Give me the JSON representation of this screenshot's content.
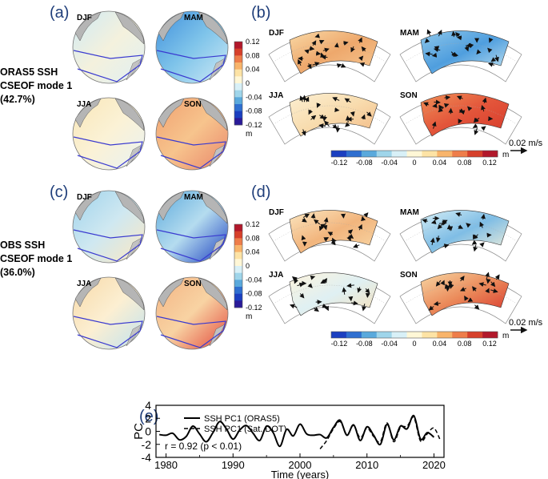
{
  "figure": {
    "panel_a": {
      "label": "(a)",
      "side_label": [
        "ORAS5 SSH",
        "CSEOF mode 1",
        "(42.7%)"
      ]
    },
    "panel_b": {
      "label": "(b)"
    },
    "panel_c": {
      "label": "(c)",
      "side_label": [
        "OBS SSH",
        "CSEOF mode 1",
        "(36.0%)"
      ]
    },
    "panel_d": {
      "label": "(d)"
    },
    "panel_e": {
      "label": "(e)"
    },
    "seasons": [
      "DJF",
      "MAM",
      "JJA",
      "SON"
    ],
    "colorbar_vertical": {
      "ticks": [
        "0.12",
        "0.08",
        "0.04",
        "0",
        "-0.04",
        "-0.08",
        "-0.12"
      ],
      "unit": "m",
      "colors": [
        "#b2182b",
        "#d6402b",
        "#ee7d4a",
        "#f8b46b",
        "#fde3a5",
        "#fff7d6",
        "#d8f0f7",
        "#9fd5ea",
        "#5aa9dc",
        "#2f6fd0",
        "#1b3fc0",
        "#2a1a99"
      ]
    },
    "colorbar_horizontal": {
      "ticks": [
        "-0.12",
        "-0.08",
        "-0.04",
        "0",
        "0.04",
        "0.08",
        "0.12"
      ],
      "unit": "m",
      "colors": [
        "#1b3fc0",
        "#2f6fd0",
        "#5aa9dc",
        "#9fd5ea",
        "#d8f0f7",
        "#fff7d6",
        "#fde3a5",
        "#f8b46b",
        "#ee7d4a",
        "#d6402b",
        "#b2182b"
      ]
    },
    "vector_scale": "0.02 m/s"
  },
  "chart_data": {
    "type": "line",
    "title": "",
    "xlabel": "Time (years)",
    "ylabel": "PC",
    "xlim": [
      1978.5,
      2021.5
    ],
    "ylim": [
      -4,
      4
    ],
    "xticks": [
      1980,
      1990,
      2000,
      2010,
      2020
    ],
    "yticks": [
      -4,
      -2,
      0,
      2,
      4
    ],
    "legend": {
      "position": "top-left",
      "entries": [
        "SSH PC1 (ORAS5)",
        "SSH PC1 (Sat. DOT)"
      ]
    },
    "annotation": "r = 0.92 (p < 0.01)",
    "series": [
      {
        "name": "SSH PC1 (ORAS5)",
        "style": "solid",
        "x": [
          1979,
          1980,
          1981,
          1982,
          1983,
          1984,
          1985,
          1986,
          1987,
          1988,
          1989,
          1990,
          1991,
          1992,
          1993,
          1994,
          1995,
          1996,
          1997,
          1998,
          1999,
          2000,
          2001,
          2002,
          2003,
          2004,
          2005,
          2006,
          2007,
          2008,
          2009,
          2010,
          2011,
          2012,
          2013,
          2014,
          2015,
          2016,
          2017,
          2018,
          2019,
          2020
        ],
        "values": [
          -0.5,
          -0.6,
          -0.3,
          -1.3,
          -0.8,
          0.8,
          -0.4,
          -1.6,
          -0.2,
          1.5,
          0.4,
          -1.2,
          0.2,
          0.9,
          -0.3,
          -1.4,
          0.8,
          -0.2,
          -2.3,
          0.3,
          -0.7,
          1.1,
          -0.4,
          -0.6,
          -0.5,
          -1.0,
          0.6,
          1.7,
          -0.6,
          1.0,
          -1.4,
          0.7,
          -0.6,
          -2.0,
          1.1,
          -1.3,
          0.8,
          0.4,
          2.4,
          -1.2,
          -0.2,
          -0.9
        ]
      },
      {
        "name": "SSH PC1 (Sat. DOT)",
        "style": "dashed",
        "x": [
          2003,
          2004,
          2005,
          2006,
          2007,
          2008,
          2009,
          2010,
          2011,
          2012,
          2013,
          2014,
          2015,
          2016,
          2017,
          2018,
          2019,
          2020,
          2021
        ],
        "values": [
          -2.7,
          -1.4,
          0.4,
          1.5,
          -0.5,
          0.9,
          -1.0,
          0.5,
          -0.8,
          -1.6,
          1.3,
          -1.6,
          0.6,
          0.8,
          2.1,
          -1.5,
          -0.4,
          0.5,
          -1.5
        ]
      }
    ]
  }
}
